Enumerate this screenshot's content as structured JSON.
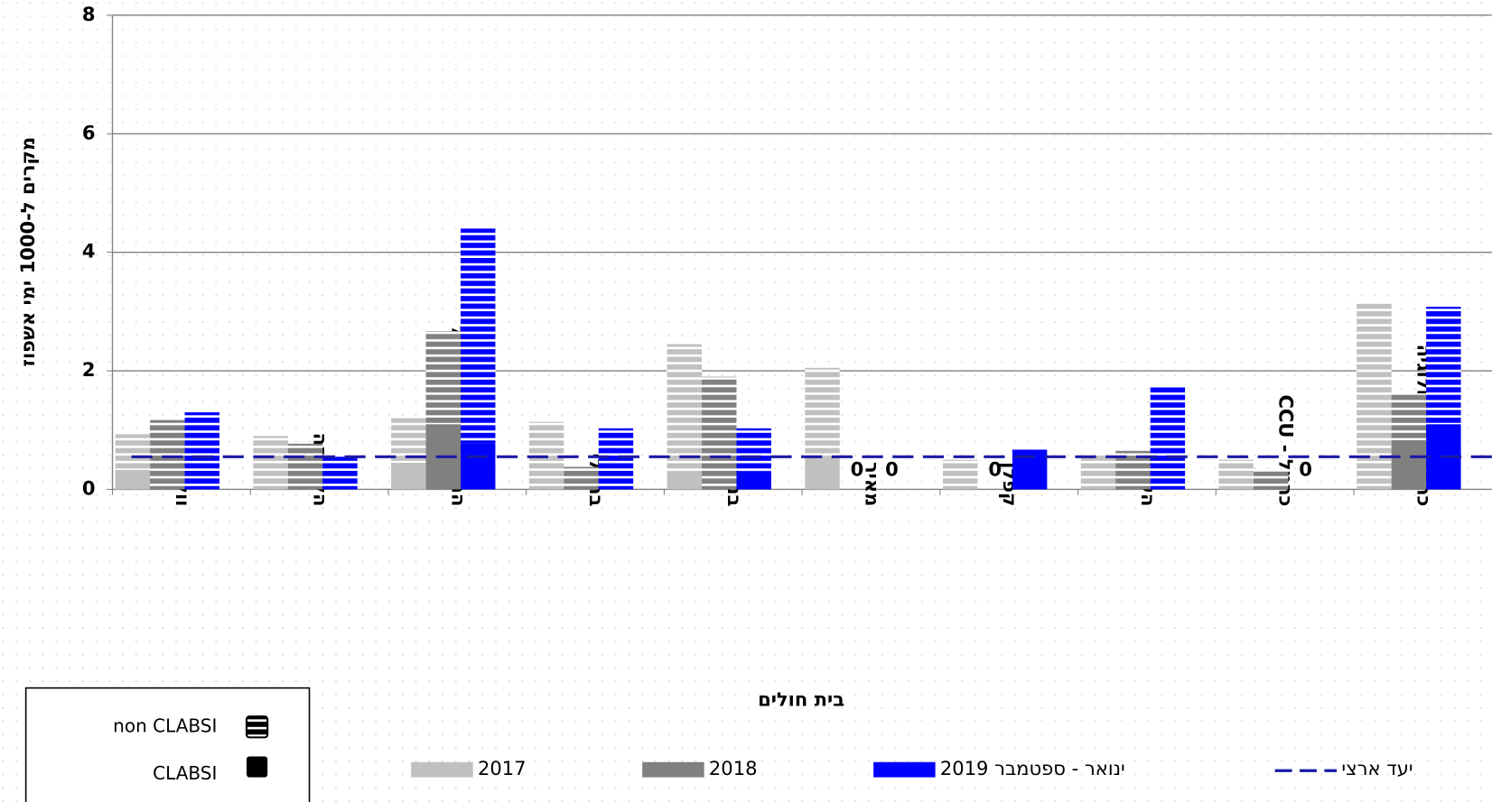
{
  "chart_data": {
    "type": "bar",
    "y_label": "מקרים ל-1000 ימי אשפוז",
    "x_label": "בית חולים",
    "categories": [
      "וולפסון *",
      "הלל יפה",
      "המרכז הרפואי לגליל",
      "ברזילי",
      "בני ציון",
      "מאיר",
      "קפלן",
      "העמק",
      "כרמל - CCU",
      "כרמל - קרדיולוגיה"
    ],
    "segment_names": {
      "clabsi": "CLABSI",
      "non_clabsi": "non CLABSI"
    },
    "series": [
      {
        "name": "2017",
        "color": "#c0c0c0",
        "label_color": "#808080",
        "clabsi": [
          0.33,
          0,
          0.45,
          0,
          0.3,
          0.55,
          0,
          0,
          0,
          0
        ],
        "non_clabsi": [
          0.6,
          0.9,
          0.75,
          1.14,
          2.15,
          1.5,
          0.5,
          0.57,
          0.5,
          3.13
        ],
        "value_labels": [
          null,
          null,
          null,
          null,
          null,
          null,
          null,
          null,
          null,
          null
        ]
      },
      {
        "name": "2018",
        "color": "#808080",
        "label_color": "#808080",
        "clabsi": [
          0,
          0,
          1.1,
          0,
          0,
          0,
          0,
          0,
          0,
          0.83
        ],
        "non_clabsi": [
          1.17,
          0.77,
          1.57,
          0.38,
          1.9,
          0,
          0,
          0.65,
          0.3,
          0.79
        ],
        "value_labels": [
          null,
          null,
          null,
          null,
          null,
          "0",
          "0",
          null,
          null,
          null
        ]
      },
      {
        "name": "ינואר - ספטמבר 2019",
        "color": "#0000ff",
        "label_color": "#3333bb",
        "clabsi": [
          0,
          0,
          0.77,
          0,
          0.3,
          0,
          0.67,
          0,
          0,
          1.1
        ],
        "non_clabsi": [
          1.3,
          0.55,
          3.63,
          1.03,
          0.73,
          0,
          0,
          1.72,
          0,
          1.98
        ],
        "value_labels": [
          null,
          null,
          null,
          null,
          null,
          "0",
          null,
          null,
          "0",
          null
        ]
      }
    ],
    "target": {
      "name": "יעד ארצי",
      "value": 0.55,
      "color": "#1a1aa6"
    },
    "ylim": [
      0,
      8
    ],
    "yticks": [
      0,
      2,
      4,
      6,
      8
    ],
    "grid": true
  }
}
